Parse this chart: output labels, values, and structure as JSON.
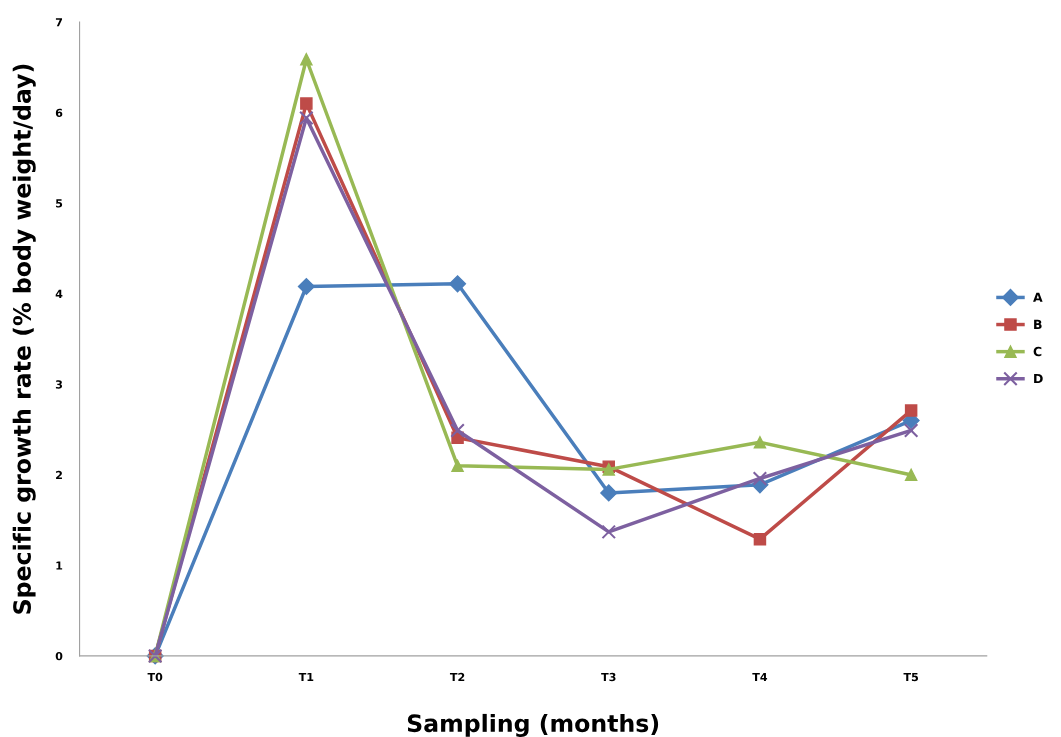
{
  "chart_data": {
    "type": "line",
    "xlabel": "Sampling (months)",
    "ylabel": "Specific growth rate (% body weight/day)",
    "categories": [
      "T0",
      "T1",
      "T2",
      "T3",
      "T4",
      "T5"
    ],
    "series": [
      {
        "name": "A",
        "color": "#4a7ebb",
        "marker": "diamond",
        "values": [
          0,
          4.08,
          4.11,
          1.8,
          1.89,
          2.6
        ]
      },
      {
        "name": "B",
        "color": "#be4b48",
        "marker": "square",
        "values": [
          0,
          6.1,
          2.41,
          2.09,
          1.29,
          2.71
        ]
      },
      {
        "name": "C",
        "color": "#98b954",
        "marker": "triangle",
        "values": [
          0,
          6.59,
          2.1,
          2.06,
          2.36,
          2.0
        ]
      },
      {
        "name": "D",
        "color": "#7d60a0",
        "marker": "cross",
        "values": [
          0,
          5.94,
          2.49,
          1.37,
          1.96,
          2.49
        ]
      }
    ],
    "ylim": [
      0,
      7
    ],
    "yticks": [
      0,
      1,
      2,
      3,
      4,
      5,
      6,
      7
    ],
    "grid": false,
    "legend": "right",
    "line_style": "solid"
  }
}
